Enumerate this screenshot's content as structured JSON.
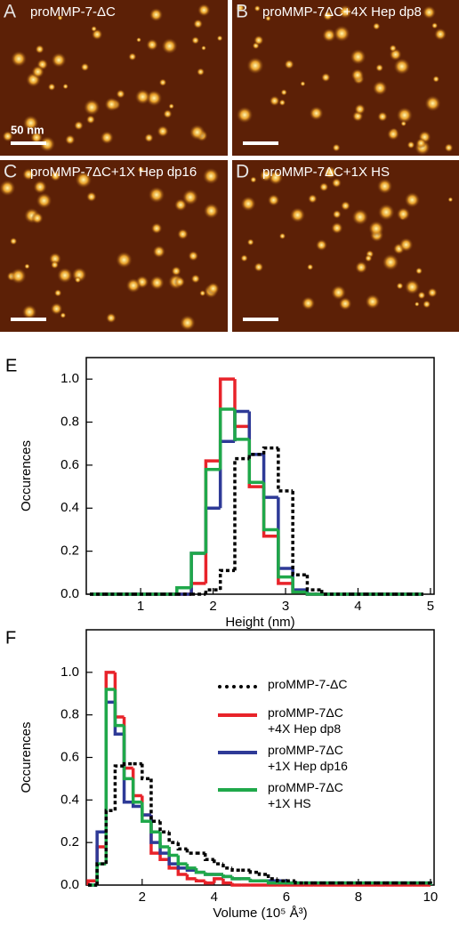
{
  "panels": [
    {
      "letter": "A",
      "title": "proMMP-7-ΔC",
      "scale": "50 nm"
    },
    {
      "letter": "B",
      "title": "proMMP-7ΔC+4X Hep dp8"
    },
    {
      "letter": "C",
      "title": "proMMP-7ΔC+1X Hep dp16"
    },
    {
      "letter": "D",
      "title": "proMMP-7ΔC+1X HS"
    }
  ],
  "chart_data": [
    {
      "type": "histogram",
      "label": "E",
      "ylabel": "Occurences",
      "xlabel": "Height (nm)",
      "bins": [
        0.3,
        0.5,
        0.7,
        0.9,
        1.1,
        1.3,
        1.5,
        1.7,
        1.9,
        2.1,
        2.3,
        2.5,
        2.7,
        2.9,
        3.1,
        3.3,
        3.5,
        3.7,
        3.9,
        4.1,
        4.3,
        4.5,
        4.7,
        4.9
      ],
      "xlim": [
        0.25,
        5.05
      ],
      "xticks": [
        1,
        2,
        3,
        4,
        5
      ],
      "ylim": [
        0,
        1.1
      ],
      "yticks": [
        {
          "value": 0,
          "label": "0.0"
        },
        {
          "value": 0.2,
          "label": "0.2"
        },
        {
          "value": 0.4,
          "label": "0.4"
        },
        {
          "value": 0.6,
          "label": "0.6"
        },
        {
          "value": 0.8,
          "label": "0.8"
        },
        {
          "value": 1,
          "label": "1.0"
        }
      ],
      "series": [
        {
          "color": "#000000",
          "dashed": true,
          "values": [
            0,
            0,
            0,
            0,
            0,
            0,
            0,
            0,
            0.02,
            0.11,
            0.63,
            0.65,
            0.68,
            0.48,
            0.09,
            0.02,
            0,
            0,
            0,
            0,
            0,
            0,
            0
          ]
        },
        {
          "color": "#e8232a",
          "values": [
            0,
            0,
            0,
            0,
            0,
            0,
            0,
            0.05,
            0.62,
            1.0,
            0.78,
            0.5,
            0.27,
            0.05,
            0.01,
            0,
            0,
            0,
            0,
            0,
            0,
            0,
            0
          ]
        },
        {
          "color": "#2e3a97",
          "values": [
            0,
            0,
            0,
            0,
            0,
            0,
            0,
            0.19,
            0.4,
            0.71,
            0.85,
            0.65,
            0.45,
            0.12,
            0.02,
            0,
            0,
            0,
            0,
            0,
            0,
            0,
            0
          ]
        },
        {
          "color": "#1fa84a",
          "values": [
            0,
            0,
            0,
            0,
            0,
            0,
            0.03,
            0.19,
            0.58,
            0.86,
            0.72,
            0.52,
            0.3,
            0.08,
            0.01,
            0,
            0,
            0,
            0,
            0,
            0,
            0,
            0
          ]
        }
      ]
    },
    {
      "type": "histogram",
      "label": "F",
      "ylabel": "Occurences",
      "xlabel": "Volume (10⁵ Å³)",
      "bins": [
        0.5,
        0.75,
        1,
        1.25,
        1.5,
        1.75,
        2,
        2.25,
        2.5,
        2.75,
        3,
        3.25,
        3.5,
        3.75,
        4,
        4.25,
        4.5,
        4.75,
        5,
        5.25,
        5.5,
        5.75,
        6,
        6.25,
        6.5,
        6.75,
        7,
        7.25,
        7.5,
        7.75,
        8,
        8.25,
        8.5,
        8.75,
        9,
        9.25,
        9.5,
        9.75,
        10
      ],
      "xlim": [
        0.45,
        10.1
      ],
      "xticks": [
        2,
        4,
        6,
        8,
        10
      ],
      "ylim": [
        0,
        1.2
      ],
      "yticks": [
        {
          "value": 0,
          "label": "0.0"
        },
        {
          "value": 0.2,
          "label": "0.2"
        },
        {
          "value": 0.4,
          "label": "0.4"
        },
        {
          "value": 0.6,
          "label": "0.6"
        },
        {
          "value": 0.8,
          "label": "0.8"
        },
        {
          "value": 1,
          "label": "1.0"
        }
      ],
      "legend": "upper right",
      "series": [
        {
          "name": "proMMP-7-ΔC",
          "color": "#000000",
          "dashed": true,
          "values": [
            0,
            0.1,
            0.35,
            0.56,
            0.57,
            0.57,
            0.5,
            0.3,
            0.25,
            0.2,
            0.17,
            0.15,
            0.15,
            0.12,
            0.1,
            0.08,
            0.07,
            0.07,
            0.06,
            0.05,
            0.03,
            0.02,
            0.02,
            0.01,
            0.01,
            0.01,
            0.01,
            0.01,
            0.01,
            0.01,
            0.01,
            0.01,
            0.01,
            0.01,
            0.01,
            0.01,
            0.01,
            0.01
          ]
        },
        {
          "name": "proMMP-7ΔC\n+4X Hep dp8",
          "color": "#e8232a",
          "values": [
            0.02,
            0.18,
            1.0,
            0.79,
            0.55,
            0.42,
            0.33,
            0.15,
            0.12,
            0.08,
            0.05,
            0.03,
            0.02,
            0.01,
            0.03,
            0.01,
            0,
            0,
            0,
            0,
            0,
            0,
            0,
            0,
            0,
            0,
            0,
            0,
            0,
            0,
            0,
            0,
            0,
            0,
            0,
            0,
            0,
            0
          ]
        },
        {
          "name": "proMMP-7ΔC\n+1X Hep dp16",
          "color": "#2e3a97",
          "values": [
            0,
            0.25,
            0.86,
            0.71,
            0.39,
            0.37,
            0.33,
            0.2,
            0.15,
            0.1,
            0.08,
            0.07,
            0.06,
            0.05,
            0.05,
            0.04,
            0.03,
            0.03,
            0.02,
            0.02,
            0.02,
            0.02,
            0.01,
            0.01,
            0.01,
            0.01,
            0.01,
            0.01,
            0.01,
            0.01,
            0.01,
            0.01,
            0.01,
            0.01,
            0.01,
            0.01,
            0.01,
            0.01
          ]
        },
        {
          "name": "proMMP-7ΔC\n+1X HS",
          "color": "#1fa84a",
          "values": [
            0,
            0.1,
            0.92,
            0.75,
            0.5,
            0.39,
            0.3,
            0.25,
            0.18,
            0.14,
            0.1,
            0.08,
            0.06,
            0.05,
            0.05,
            0.04,
            0.03,
            0.03,
            0.02,
            0.02,
            0.01,
            0.01,
            0.01,
            0.01,
            0.01,
            0.01,
            0.01,
            0.01,
            0.01,
            0.01,
            0.01,
            0.01,
            0.01,
            0.01,
            0.01,
            0.01,
            0.01,
            0.01
          ]
        }
      ]
    }
  ]
}
